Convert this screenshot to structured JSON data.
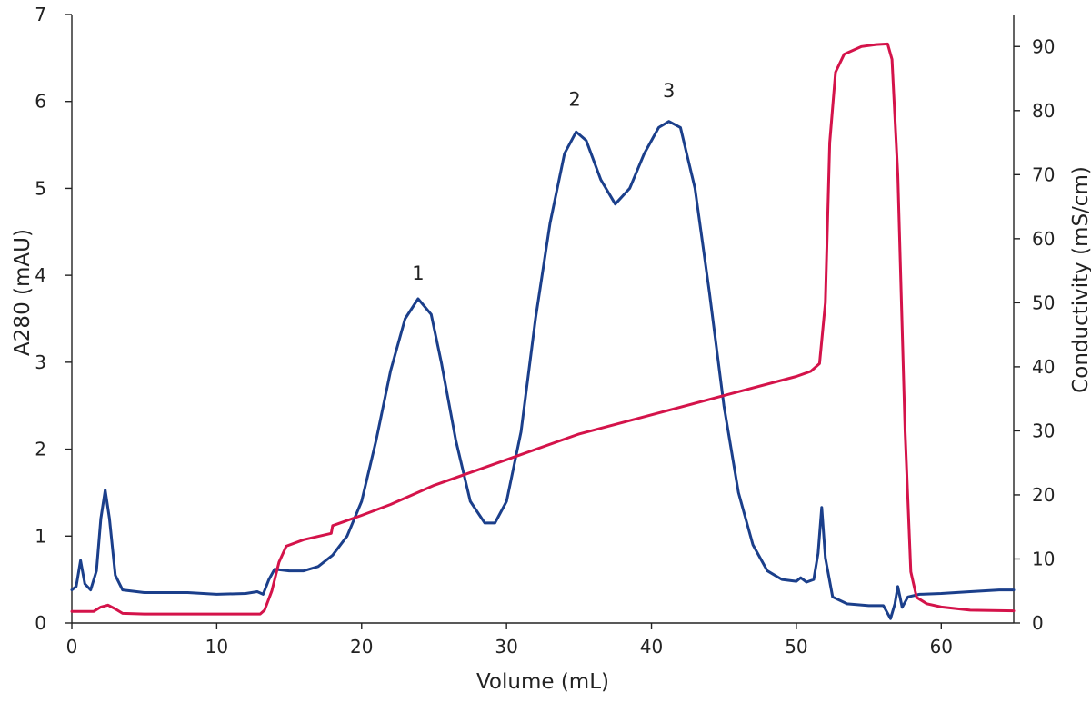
{
  "chart_data": {
    "type": "line",
    "title": "",
    "xlabel": "Volume (mL)",
    "ylabel_left": "A280 (mAU)",
    "ylabel_right": "Conductivity (mS/cm)",
    "xlim": [
      0,
      65
    ],
    "ylim_left": [
      0,
      7
    ],
    "ylim_right": [
      0,
      95
    ],
    "x_ticks": [
      "0",
      "10",
      "20",
      "30",
      "40",
      "50",
      "60"
    ],
    "y_left_ticks": [
      "0",
      "1",
      "2",
      "3",
      "4",
      "5",
      "6",
      "7"
    ],
    "y_right_ticks": [
      "0",
      "10",
      "20",
      "30",
      "40",
      "50",
      "60",
      "70",
      "80",
      "90"
    ],
    "grid": false,
    "legend": "none",
    "annotations": [
      {
        "text": "1",
        "x": 23.9,
        "y": 3.95
      },
      {
        "text": "2",
        "x": 34.7,
        "y": 5.95
      },
      {
        "text": "3",
        "x": 41.2,
        "y": 6.05
      }
    ],
    "series": [
      {
        "axis": "left",
        "color": "#1b3f8b",
        "points": [
          [
            0,
            0.38
          ],
          [
            0.3,
            0.42
          ],
          [
            0.6,
            0.72
          ],
          [
            0.9,
            0.45
          ],
          [
            1.3,
            0.38
          ],
          [
            1.7,
            0.6
          ],
          [
            2.0,
            1.2
          ],
          [
            2.3,
            1.53
          ],
          [
            2.6,
            1.2
          ],
          [
            3.0,
            0.55
          ],
          [
            3.5,
            0.38
          ],
          [
            5,
            0.35
          ],
          [
            8,
            0.35
          ],
          [
            10,
            0.33
          ],
          [
            12,
            0.34
          ],
          [
            12.8,
            0.36
          ],
          [
            13.2,
            0.33
          ],
          [
            13.6,
            0.5
          ],
          [
            14,
            0.62
          ],
          [
            15,
            0.6
          ],
          [
            16,
            0.6
          ],
          [
            17,
            0.65
          ],
          [
            18,
            0.78
          ],
          [
            19,
            1.0
          ],
          [
            20,
            1.4
          ],
          [
            21,
            2.1
          ],
          [
            22,
            2.9
          ],
          [
            23,
            3.5
          ],
          [
            23.9,
            3.73
          ],
          [
            24.8,
            3.55
          ],
          [
            25.5,
            3.0
          ],
          [
            26.5,
            2.1
          ],
          [
            27.5,
            1.4
          ],
          [
            28.5,
            1.15
          ],
          [
            29.2,
            1.15
          ],
          [
            30,
            1.4
          ],
          [
            31,
            2.2
          ],
          [
            32,
            3.5
          ],
          [
            33,
            4.6
          ],
          [
            34,
            5.4
          ],
          [
            34.8,
            5.65
          ],
          [
            35.5,
            5.55
          ],
          [
            36.5,
            5.1
          ],
          [
            37.5,
            4.82
          ],
          [
            38.5,
            5.0
          ],
          [
            39.5,
            5.4
          ],
          [
            40.5,
            5.7
          ],
          [
            41.2,
            5.77
          ],
          [
            42,
            5.7
          ],
          [
            43,
            5.0
          ],
          [
            44,
            3.8
          ],
          [
            45,
            2.5
          ],
          [
            46,
            1.5
          ],
          [
            47,
            0.9
          ],
          [
            48,
            0.6
          ],
          [
            49,
            0.5
          ],
          [
            50,
            0.48
          ],
          [
            50.3,
            0.52
          ],
          [
            50.7,
            0.47
          ],
          [
            51.2,
            0.5
          ],
          [
            51.5,
            0.8
          ],
          [
            51.75,
            1.33
          ],
          [
            52.0,
            0.75
          ],
          [
            52.5,
            0.3
          ],
          [
            53.5,
            0.22
          ],
          [
            55,
            0.2
          ],
          [
            56,
            0.2
          ],
          [
            56.5,
            0.05
          ],
          [
            56.8,
            0.22
          ],
          [
            57.0,
            0.42
          ],
          [
            57.3,
            0.18
          ],
          [
            57.7,
            0.3
          ],
          [
            58.5,
            0.33
          ],
          [
            60,
            0.34
          ],
          [
            62,
            0.36
          ],
          [
            64,
            0.38
          ],
          [
            65,
            0.38
          ]
        ]
      },
      {
        "axis": "right",
        "color": "#d4134a",
        "points": [
          [
            0,
            1.8
          ],
          [
            1.5,
            1.8
          ],
          [
            2.0,
            2.5
          ],
          [
            2.5,
            2.8
          ],
          [
            3.0,
            2.2
          ],
          [
            3.5,
            1.5
          ],
          [
            5,
            1.4
          ],
          [
            10,
            1.4
          ],
          [
            13,
            1.4
          ],
          [
            13.3,
            2.0
          ],
          [
            13.8,
            5.0
          ],
          [
            14.3,
            9.5
          ],
          [
            14.8,
            12.0
          ],
          [
            16,
            13.0
          ],
          [
            17.9,
            14.0
          ],
          [
            18.0,
            15.2
          ],
          [
            20,
            16.8
          ],
          [
            22,
            18.5
          ],
          [
            25,
            21.5
          ],
          [
            30,
            25.5
          ],
          [
            35,
            29.5
          ],
          [
            40,
            32.5
          ],
          [
            45,
            35.5
          ],
          [
            50,
            38.5
          ],
          [
            51,
            39.3
          ],
          [
            51.6,
            40.5
          ],
          [
            52.0,
            50.0
          ],
          [
            52.3,
            75.0
          ],
          [
            52.7,
            86.0
          ],
          [
            53.3,
            88.8
          ],
          [
            54.5,
            90.0
          ],
          [
            55.5,
            90.3
          ],
          [
            56.3,
            90.4
          ],
          [
            56.6,
            88.0
          ],
          [
            57.0,
            70.0
          ],
          [
            57.5,
            30.0
          ],
          [
            57.9,
            8.0
          ],
          [
            58.3,
            4.0
          ],
          [
            59,
            3.0
          ],
          [
            60,
            2.5
          ],
          [
            62,
            2.0
          ],
          [
            65,
            1.9
          ]
        ]
      }
    ]
  }
}
